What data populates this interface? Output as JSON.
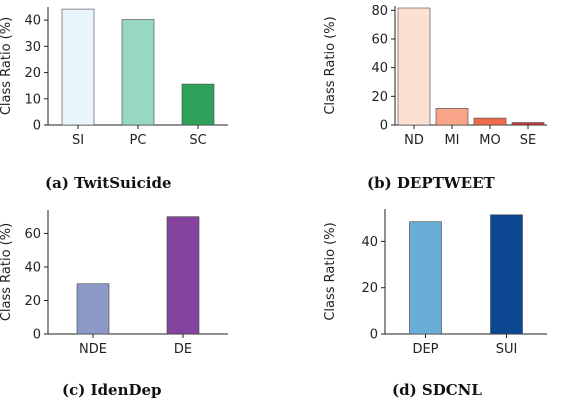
{
  "chart_data": [
    {
      "type": "bar",
      "caption": "(a) TwitSuicide",
      "ylabel": "Class Ratio (%)",
      "categories": [
        "SI",
        "PC",
        "SC"
      ],
      "values": [
        44.2,
        40.2,
        15.6
      ],
      "colors": [
        "#e8f5fc",
        "#97d8c5",
        "#2ea25a"
      ],
      "ylim": [
        0,
        45
      ],
      "yticks": [
        0,
        10,
        20,
        30,
        40
      ]
    },
    {
      "type": "bar",
      "caption": "(b) DEPTWEET",
      "ylabel": "Class Ratio (%)",
      "categories": [
        "ND",
        "MI",
        "MO",
        "SE"
      ],
      "values": [
        81.6,
        11.6,
        4.8,
        1.7
      ],
      "colors": [
        "#fde0d2",
        "#f9a58a",
        "#f06a4c",
        "#c6363a"
      ],
      "ylim": [
        0,
        83
      ],
      "yticks": [
        0,
        20,
        40,
        60,
        80
      ]
    },
    {
      "type": "bar",
      "caption": "(c) IdenDep",
      "ylabel": "Class Ratio (%)",
      "categories": [
        "NDE",
        "DE"
      ],
      "values": [
        30,
        70
      ],
      "colors": [
        "#8c98c7",
        "#84439c"
      ],
      "ylim": [
        0,
        74
      ],
      "yticks": [
        0,
        20,
        40,
        60
      ]
    },
    {
      "type": "bar",
      "caption": "(d) SDCNL",
      "ylabel": "Class Ratio (%)",
      "categories": [
        "DEP",
        "SUI"
      ],
      "values": [
        48.5,
        51.5
      ],
      "colors": [
        "#68acd8",
        "#0c4792"
      ],
      "ylim": [
        0,
        54
      ],
      "yticks": [
        0,
        20,
        40
      ]
    }
  ]
}
